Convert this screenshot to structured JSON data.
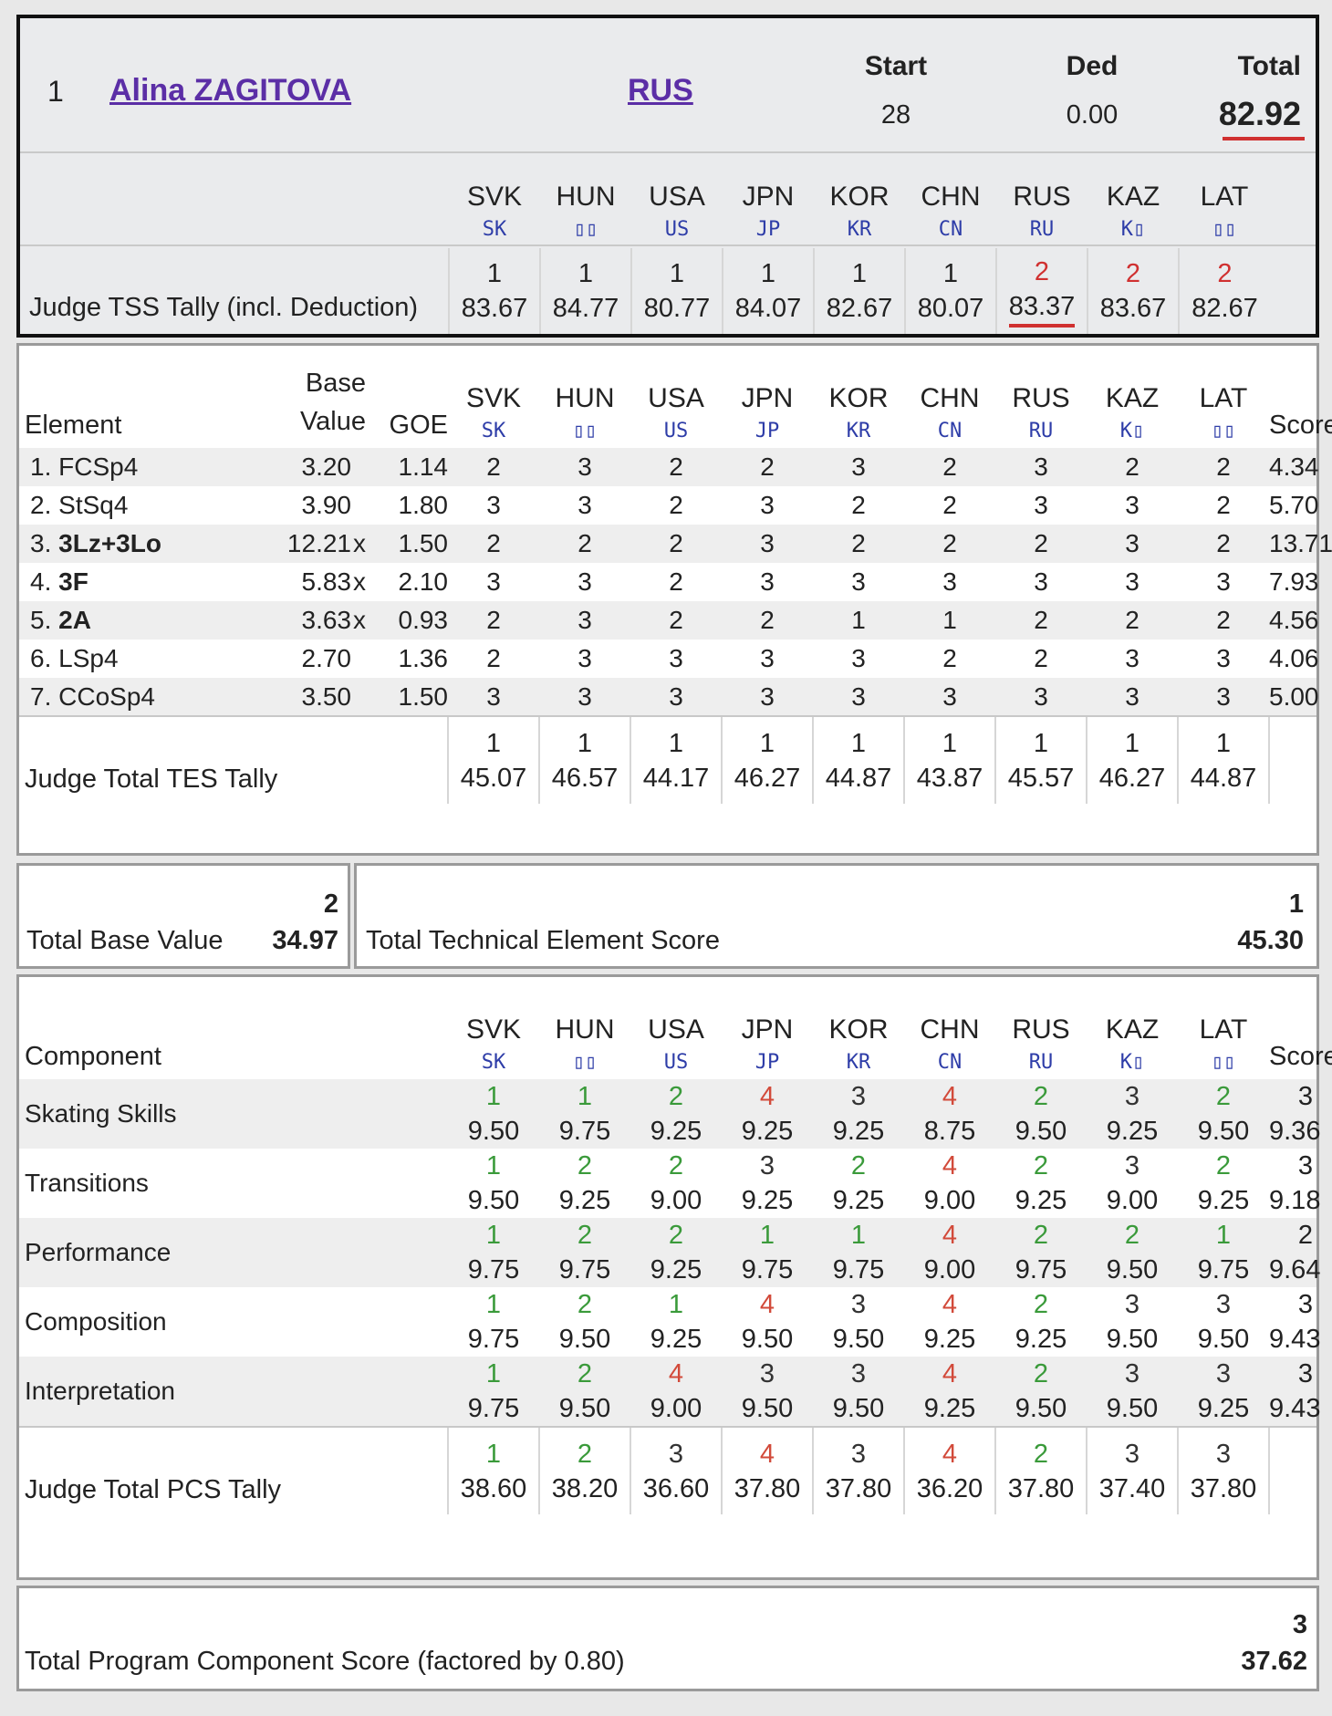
{
  "skater": {
    "rank": "1",
    "name": "Alina ZAGITOVA",
    "nation": "RUS"
  },
  "summary": {
    "start_label": "Start",
    "start": "28",
    "ded_label": "Ded",
    "ded": "0.00",
    "total_label": "Total",
    "total": "82.92"
  },
  "judges": [
    {
      "country": "SVK",
      "code": "SK"
    },
    {
      "country": "HUN",
      "code": "▯▯"
    },
    {
      "country": "USA",
      "code": "US"
    },
    {
      "country": "JPN",
      "code": "JP"
    },
    {
      "country": "KOR",
      "code": "KR"
    },
    {
      "country": "CHN",
      "code": "CN"
    },
    {
      "country": "RUS",
      "code": "RU"
    },
    {
      "country": "KAZ",
      "code": "K▯"
    },
    {
      "country": "LAT",
      "code": "▯▯"
    }
  ],
  "tss": {
    "label": "Judge TSS Tally (incl. Deduction)",
    "ranks": [
      "1",
      "1",
      "1",
      "1",
      "1",
      "1",
      "2",
      "2",
      "2"
    ],
    "values": [
      "83.67",
      "84.77",
      "80.77",
      "84.07",
      "82.67",
      "80.07",
      "83.37",
      "83.67",
      "82.67"
    ]
  },
  "elements_table": {
    "header": {
      "element": "Element",
      "base_value_1": "Base",
      "base_value_2": "Value",
      "goe": "GOE",
      "score": "Score"
    },
    "rows": [
      {
        "no": "1.",
        "name": "FCSp4",
        "bold": false,
        "base": "3.20",
        "x": "",
        "goe": "1.14",
        "marks": [
          "2",
          "3",
          "2",
          "2",
          "3",
          "2",
          "3",
          "2",
          "2"
        ],
        "score": "4.34"
      },
      {
        "no": "2.",
        "name": "StSq4",
        "bold": false,
        "base": "3.90",
        "x": "",
        "goe": "1.80",
        "marks": [
          "3",
          "3",
          "2",
          "3",
          "2",
          "2",
          "3",
          "3",
          "2"
        ],
        "score": "5.70"
      },
      {
        "no": "3.",
        "name": "3Lz+3Lo",
        "bold": true,
        "base": "12.21",
        "x": "x",
        "goe": "1.50",
        "marks": [
          "2",
          "2",
          "2",
          "3",
          "2",
          "2",
          "2",
          "3",
          "2"
        ],
        "score": "13.71"
      },
      {
        "no": "4.",
        "name": "3F",
        "bold": true,
        "base": "5.83",
        "x": "x",
        "goe": "2.10",
        "marks": [
          "3",
          "3",
          "2",
          "3",
          "3",
          "3",
          "3",
          "3",
          "3"
        ],
        "score": "7.93"
      },
      {
        "no": "5.",
        "name": "2A",
        "bold": true,
        "base": "3.63",
        "x": "x",
        "goe": "0.93",
        "marks": [
          "2",
          "3",
          "2",
          "2",
          "1",
          "1",
          "2",
          "2",
          "2"
        ],
        "score": "4.56"
      },
      {
        "no": "6.",
        "name": "LSp4",
        "bold": false,
        "base": "2.70",
        "x": "",
        "goe": "1.36",
        "marks": [
          "2",
          "3",
          "3",
          "3",
          "3",
          "2",
          "2",
          "3",
          "3"
        ],
        "score": "4.06"
      },
      {
        "no": "7.",
        "name": "CCoSp4",
        "bold": false,
        "base": "3.50",
        "x": "",
        "goe": "1.50",
        "marks": [
          "3",
          "3",
          "3",
          "3",
          "3",
          "3",
          "3",
          "3",
          "3"
        ],
        "score": "5.00"
      }
    ],
    "tally": {
      "label": "Judge Total TES Tally",
      "ranks": [
        "1",
        "1",
        "1",
        "1",
        "1",
        "1",
        "1",
        "1",
        "1"
      ],
      "values": [
        "45.07",
        "46.57",
        "44.17",
        "46.27",
        "44.87",
        "43.87",
        "45.57",
        "46.27",
        "44.87"
      ]
    }
  },
  "totals": {
    "base_label": "Total Base Value",
    "base_rank": "2",
    "base_value": "34.97",
    "tes_label": "Total Technical Element Score",
    "tes_rank": "1",
    "tes_value": "45.30"
  },
  "components_table": {
    "header": {
      "component": "Component",
      "score": "Score"
    },
    "rows": [
      {
        "name": "Skating Skills",
        "ranks": [
          "1",
          "1",
          "2",
          "4",
          "3",
          "4",
          "2",
          "3",
          "2"
        ],
        "values": [
          "9.50",
          "9.75",
          "9.25",
          "9.25",
          "9.25",
          "8.75",
          "9.50",
          "9.25",
          "9.50"
        ],
        "score_rank": "3",
        "score": "9.36"
      },
      {
        "name": "Transitions",
        "ranks": [
          "1",
          "2",
          "2",
          "3",
          "2",
          "4",
          "2",
          "3",
          "2"
        ],
        "values": [
          "9.50",
          "9.25",
          "9.00",
          "9.25",
          "9.25",
          "9.00",
          "9.25",
          "9.00",
          "9.25"
        ],
        "score_rank": "3",
        "score": "9.18"
      },
      {
        "name": "Performance",
        "ranks": [
          "1",
          "2",
          "2",
          "1",
          "1",
          "4",
          "2",
          "2",
          "1"
        ],
        "values": [
          "9.75",
          "9.75",
          "9.25",
          "9.75",
          "9.75",
          "9.00",
          "9.75",
          "9.50",
          "9.75"
        ],
        "score_rank": "2",
        "score": "9.64"
      },
      {
        "name": "Composition",
        "ranks": [
          "1",
          "2",
          "1",
          "4",
          "3",
          "4",
          "2",
          "3",
          "3"
        ],
        "values": [
          "9.75",
          "9.50",
          "9.25",
          "9.50",
          "9.50",
          "9.25",
          "9.25",
          "9.50",
          "9.50"
        ],
        "score_rank": "3",
        "score": "9.43"
      },
      {
        "name": "Interpretation",
        "ranks": [
          "1",
          "2",
          "4",
          "3",
          "3",
          "4",
          "2",
          "3",
          "3"
        ],
        "values": [
          "9.75",
          "9.50",
          "9.00",
          "9.50",
          "9.50",
          "9.25",
          "9.50",
          "9.50",
          "9.25"
        ],
        "score_rank": "3",
        "score": "9.43"
      }
    ],
    "tally": {
      "label": "Judge Total PCS Tally",
      "ranks": [
        "1",
        "2",
        "3",
        "4",
        "3",
        "4",
        "2",
        "3",
        "3"
      ],
      "values": [
        "38.60",
        "38.20",
        "36.60",
        "37.80",
        "37.80",
        "36.20",
        "37.80",
        "37.40",
        "37.80"
      ]
    }
  },
  "pcs_total": {
    "label": "Total Program Component Score (factored by 0.80)",
    "rank": "3",
    "value": "37.62"
  },
  "colors": {
    "rank_1": "#3a9a3a",
    "rank_2": "#3a9a3a",
    "rank_3": "#333333",
    "rank_4": "#d24a3a",
    "tss_rank_2": "#d03030",
    "underline": "#d03030",
    "link": "#5b2ea6"
  }
}
